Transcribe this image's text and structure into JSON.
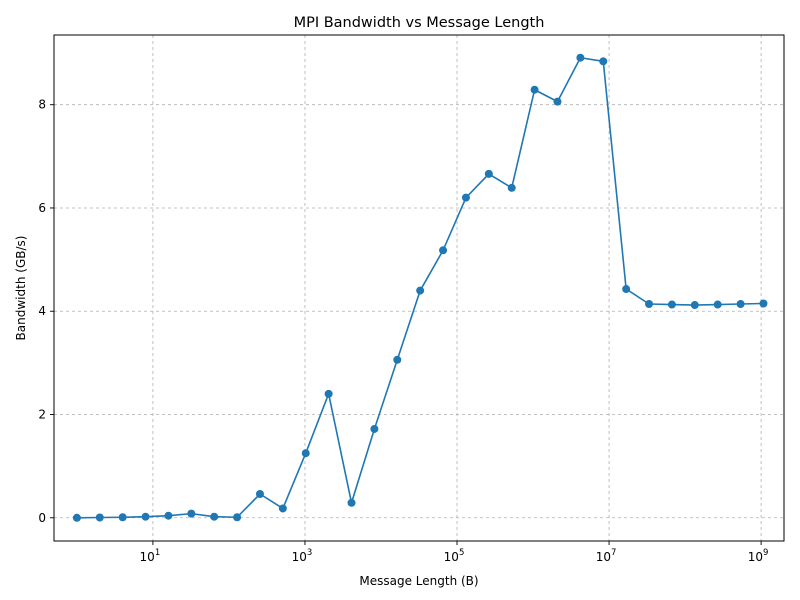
{
  "chart_data": {
    "type": "line",
    "title": "MPI Bandwidth vs Message Length",
    "xlabel": "Message Length (B)",
    "ylabel": "Bandwidth (GB/s)",
    "xscale": "log",
    "xlim": [
      0.5,
      2000000000
    ],
    "ylim": [
      -0.45,
      9.35
    ],
    "grid": true,
    "x_ticks": [
      {
        "value": 10,
        "base": "10",
        "exp": "1"
      },
      {
        "value": 1000,
        "base": "10",
        "exp": "3"
      },
      {
        "value": 100000,
        "base": "10",
        "exp": "5"
      },
      {
        "value": 10000000,
        "base": "10",
        "exp": "7"
      },
      {
        "value": 1000000000,
        "base": "10",
        "exp": "9"
      }
    ],
    "y_ticks": [
      {
        "value": 0,
        "label": "0"
      },
      {
        "value": 2,
        "label": "2"
      },
      {
        "value": 4,
        "label": "4"
      },
      {
        "value": 6,
        "label": "6"
      },
      {
        "value": 8,
        "label": "8"
      }
    ],
    "color": "#1f77b4",
    "x": [
      1,
      2,
      4,
      8,
      16,
      32,
      64,
      128,
      256,
      512,
      1024,
      2048,
      4096,
      8192,
      16384,
      32768,
      65536,
      131072,
      262144,
      524288,
      1048576,
      2097152,
      4194304,
      8388608,
      16777216,
      33554432,
      67108864,
      134217728,
      268435456,
      536870912,
      1073741824
    ],
    "y": [
      0.0,
      0.005,
      0.01,
      0.02,
      0.04,
      0.08,
      0.02,
      0.01,
      0.46,
      0.18,
      1.25,
      2.4,
      0.29,
      1.72,
      3.06,
      4.4,
      5.18,
      6.2,
      6.66,
      6.39,
      8.29,
      8.06,
      8.91,
      8.84,
      4.43,
      4.14,
      4.13,
      4.12,
      4.13,
      4.14,
      4.15
    ]
  }
}
